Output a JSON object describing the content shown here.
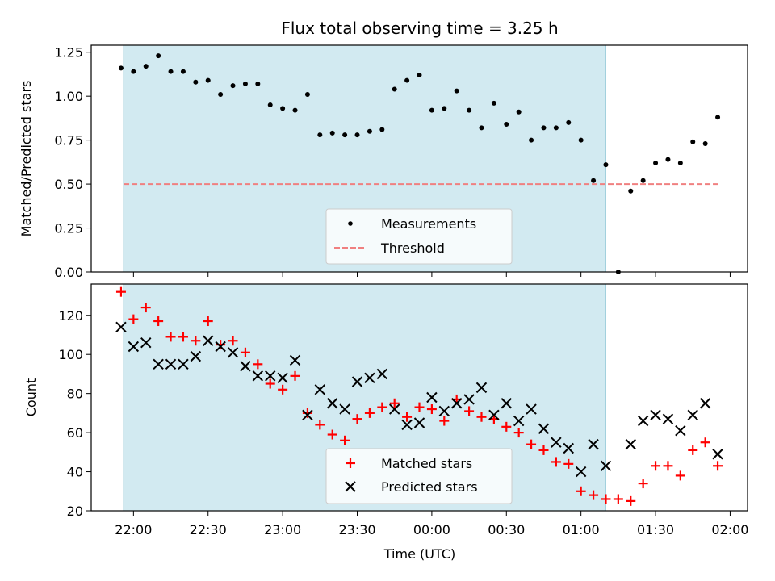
{
  "chart_data": [
    {
      "type": "scatter",
      "title": "Flux total observing time = 3.25 h",
      "xlabel": "",
      "ylabel": "Matched/Predicted stars",
      "ylim": [
        0,
        1.29
      ],
      "yticks": [
        "0.00",
        "0.25",
        "0.50",
        "0.75",
        "1.00",
        "1.25"
      ],
      "threshold": 0.5,
      "highlight_span_minutes": [
        -4,
        190
      ],
      "legend": {
        "placement": "bottom-center",
        "entries": [
          "Measurements",
          "Threshold"
        ]
      },
      "colors": {
        "measurements": "#000000",
        "threshold": "#f08080",
        "span": "#add8e6"
      },
      "series": [
        {
          "name": "Measurements",
          "x_minutes": [
            -5,
            0,
            5,
            10,
            15,
            20,
            25,
            30,
            35,
            40,
            45,
            50,
            55,
            60,
            65,
            70,
            75,
            80,
            85,
            90,
            95,
            100,
            105,
            110,
            115,
            120,
            125,
            130,
            135,
            140,
            145,
            150,
            155,
            160,
            165,
            170,
            175,
            180,
            185,
            190,
            195,
            200,
            205,
            210,
            215,
            220,
            225,
            230,
            235
          ],
          "y": [
            1.16,
            1.14,
            1.17,
            1.23,
            1.14,
            1.14,
            1.08,
            1.09,
            1.01,
            1.06,
            1.07,
            1.07,
            0.95,
            0.93,
            0.92,
            1.01,
            0.78,
            0.79,
            0.78,
            0.78,
            0.8,
            0.81,
            1.04,
            1.09,
            1.12,
            0.92,
            0.93,
            1.03,
            0.92,
            0.82,
            0.96,
            0.84,
            0.91,
            0.75,
            0.82,
            0.82,
            0.85,
            0.75,
            0.52,
            0.61,
            0.0,
            0.46,
            0.52,
            0.62,
            0.64,
            0.62,
            0.74,
            0.73,
            0.88
          ]
        }
      ]
    },
    {
      "type": "scatter",
      "title": "",
      "xlabel": "Time (UTC)",
      "ylabel": "Count",
      "ylim": [
        20,
        136
      ],
      "yticks": [
        "20",
        "40",
        "60",
        "80",
        "100",
        "120"
      ],
      "xticks": [
        "22:00",
        "22:30",
        "23:00",
        "23:30",
        "00:00",
        "00:30",
        "01:00",
        "01:30",
        "02:00"
      ],
      "x_range_minutes": [
        -17,
        247
      ],
      "legend": {
        "placement": "bottom-center",
        "entries": [
          "Matched stars",
          "Predicted stars"
        ]
      },
      "colors": {
        "matched": "#ff0000",
        "predicted": "#000000",
        "span": "#add8e6"
      },
      "series": [
        {
          "name": "Matched stars",
          "x_minutes": [
            -5,
            0,
            5,
            10,
            15,
            20,
            25,
            30,
            35,
            40,
            45,
            50,
            55,
            60,
            65,
            70,
            75,
            80,
            85,
            90,
            95,
            100,
            105,
            110,
            115,
            120,
            125,
            130,
            135,
            140,
            145,
            150,
            155,
            160,
            165,
            170,
            175,
            180,
            185,
            190,
            195,
            200,
            205,
            210,
            215,
            220,
            225,
            230,
            235
          ],
          "values": [
            132,
            118,
            124,
            117,
            109,
            109,
            107,
            117,
            105,
            107,
            101,
            95,
            85,
            82,
            89,
            70,
            64,
            59,
            56,
            67,
            70,
            73,
            75,
            68,
            73,
            72,
            66,
            77,
            71,
            68,
            67,
            63,
            60,
            54,
            51,
            45,
            44,
            30,
            28,
            26,
            26,
            25,
            34,
            43,
            43,
            38,
            51,
            55,
            43
          ]
        },
        {
          "name": "Predicted stars",
          "x_minutes": [
            -5,
            0,
            5,
            10,
            15,
            20,
            25,
            30,
            35,
            40,
            45,
            50,
            55,
            60,
            65,
            70,
            75,
            80,
            85,
            90,
            95,
            100,
            105,
            110,
            115,
            120,
            125,
            130,
            135,
            140,
            145,
            150,
            155,
            160,
            165,
            170,
            175,
            180,
            185,
            190,
            200,
            205,
            210,
            215,
            220,
            225,
            230,
            235
          ],
          "values": [
            114,
            104,
            106,
            95,
            95,
            95,
            99,
            107,
            104,
            101,
            94,
            89,
            89,
            88,
            97,
            69,
            82,
            75,
            72,
            86,
            88,
            90,
            72,
            64,
            65,
            78,
            71,
            75,
            77,
            83,
            69,
            75,
            66,
            72,
            62,
            55,
            52,
            40,
            54,
            43,
            54,
            66,
            69,
            67,
            61,
            69,
            75,
            49
          ]
        }
      ]
    }
  ]
}
